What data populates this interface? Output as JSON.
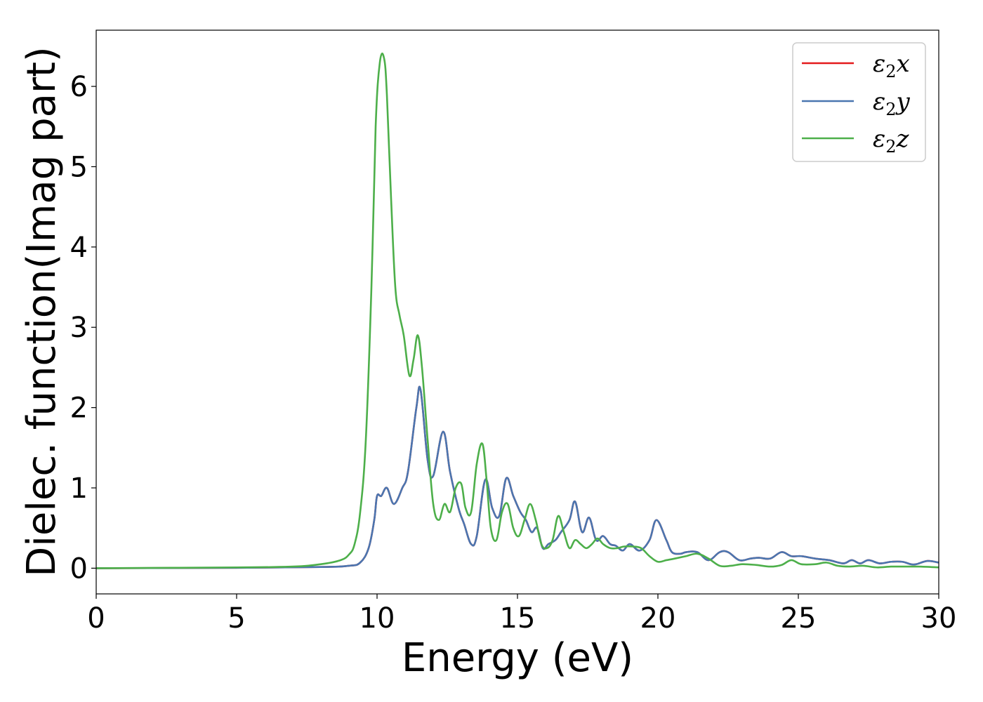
{
  "chart_data": {
    "type": "line",
    "title": "",
    "xlabel": "Energy (eV)",
    "ylabel": "Dielec. function(Imag part)",
    "xlim": [
      0,
      30
    ],
    "ylim": [
      -0.32,
      6.7
    ],
    "xticks": [
      0,
      5,
      10,
      15,
      20,
      25,
      30
    ],
    "yticks": [
      0,
      1,
      2,
      3,
      4,
      5,
      6
    ],
    "xtick_labels": [
      "0",
      "5",
      "10",
      "15",
      "20",
      "25",
      "30"
    ],
    "ytick_labels": [
      "0",
      "1",
      "2",
      "3",
      "4",
      "5",
      "6"
    ],
    "grid": false,
    "legend_position": "top-right",
    "series": [
      {
        "name": "ε2x",
        "name_main": "ε",
        "name_sub": "2",
        "name_var": "x",
        "color": "#e41a1c",
        "x": [
          0,
          5,
          8,
          9,
          9.4,
          9.7,
          9.9,
          10.0,
          10.15,
          10.35,
          10.6,
          10.9,
          11.1,
          11.4,
          11.55,
          11.8,
          12.0,
          12.35,
          12.6,
          12.9,
          13.1,
          13.35,
          13.55,
          13.85,
          14.1,
          14.35,
          14.6,
          14.85,
          15.1,
          15.3,
          15.5,
          15.7,
          15.9,
          16.1,
          16.35,
          16.55,
          16.85,
          17.05,
          17.3,
          17.55,
          17.8,
          18.05,
          18.3,
          18.5,
          18.75,
          19.0,
          19.35,
          19.7,
          19.95,
          20.3,
          20.5,
          20.8,
          21.0,
          21.4,
          21.8,
          22.2,
          22.5,
          22.9,
          23.3,
          23.6,
          24.0,
          24.4,
          24.75,
          25.1,
          25.6,
          26.1,
          26.6,
          26.9,
          27.2,
          27.5,
          27.9,
          28.3,
          28.7,
          29.0,
          29.2,
          29.6,
          30.0
        ],
        "values": [
          0.0,
          0.005,
          0.015,
          0.03,
          0.07,
          0.25,
          0.6,
          0.9,
          0.9,
          1.0,
          0.8,
          1.0,
          1.2,
          2.0,
          2.22,
          1.35,
          1.15,
          1.7,
          1.2,
          0.75,
          0.55,
          0.3,
          0.4,
          1.1,
          0.75,
          0.65,
          1.12,
          0.9,
          0.7,
          0.6,
          0.45,
          0.5,
          0.25,
          0.3,
          0.35,
          0.45,
          0.6,
          0.83,
          0.45,
          0.63,
          0.35,
          0.4,
          0.3,
          0.28,
          0.22,
          0.3,
          0.22,
          0.35,
          0.6,
          0.35,
          0.2,
          0.18,
          0.2,
          0.2,
          0.1,
          0.2,
          0.2,
          0.1,
          0.12,
          0.13,
          0.12,
          0.2,
          0.15,
          0.15,
          0.12,
          0.1,
          0.06,
          0.1,
          0.06,
          0.1,
          0.06,
          0.08,
          0.08,
          0.05,
          0.05,
          0.09,
          0.07
        ]
      },
      {
        "name": "ε2y",
        "name_main": "ε",
        "name_sub": "2",
        "name_var": "y",
        "color": "#4a76b0",
        "x": [
          0,
          5,
          8,
          9,
          9.4,
          9.7,
          9.9,
          10.0,
          10.15,
          10.35,
          10.6,
          10.9,
          11.1,
          11.4,
          11.55,
          11.8,
          12.0,
          12.35,
          12.6,
          12.9,
          13.1,
          13.35,
          13.55,
          13.85,
          14.1,
          14.35,
          14.6,
          14.85,
          15.1,
          15.3,
          15.5,
          15.7,
          15.9,
          16.1,
          16.35,
          16.55,
          16.85,
          17.05,
          17.3,
          17.55,
          17.8,
          18.05,
          18.3,
          18.5,
          18.75,
          19.0,
          19.35,
          19.7,
          19.95,
          20.3,
          20.5,
          20.8,
          21.0,
          21.4,
          21.8,
          22.2,
          22.5,
          22.9,
          23.3,
          23.6,
          24.0,
          24.4,
          24.75,
          25.1,
          25.6,
          26.1,
          26.6,
          26.9,
          27.2,
          27.5,
          27.9,
          28.3,
          28.7,
          29.0,
          29.2,
          29.6,
          30.0
        ],
        "values": [
          0.0,
          0.005,
          0.015,
          0.03,
          0.07,
          0.25,
          0.6,
          0.9,
          0.9,
          1.0,
          0.8,
          1.0,
          1.2,
          2.0,
          2.22,
          1.35,
          1.15,
          1.7,
          1.2,
          0.75,
          0.55,
          0.3,
          0.4,
          1.1,
          0.75,
          0.65,
          1.12,
          0.9,
          0.7,
          0.6,
          0.45,
          0.5,
          0.25,
          0.3,
          0.35,
          0.45,
          0.6,
          0.83,
          0.45,
          0.63,
          0.35,
          0.4,
          0.3,
          0.28,
          0.22,
          0.3,
          0.22,
          0.35,
          0.6,
          0.35,
          0.2,
          0.18,
          0.2,
          0.2,
          0.1,
          0.2,
          0.2,
          0.1,
          0.12,
          0.13,
          0.12,
          0.2,
          0.15,
          0.15,
          0.12,
          0.1,
          0.06,
          0.1,
          0.06,
          0.1,
          0.06,
          0.08,
          0.08,
          0.05,
          0.05,
          0.09,
          0.07
        ]
      },
      {
        "name": "ε2z",
        "name_main": "ε",
        "name_sub": "2",
        "name_var": "z",
        "color": "#4daf4a",
        "x": [
          0,
          5,
          7,
          8,
          8.7,
          9.0,
          9.2,
          9.4,
          9.6,
          9.8,
          9.95,
          10.1,
          10.25,
          10.35,
          10.5,
          10.65,
          10.8,
          10.95,
          11.15,
          11.3,
          11.45,
          11.6,
          11.8,
          12.0,
          12.2,
          12.4,
          12.6,
          12.8,
          13.0,
          13.15,
          13.35,
          13.55,
          13.75,
          13.9,
          14.05,
          14.25,
          14.45,
          14.65,
          14.85,
          15.05,
          15.25,
          15.45,
          15.65,
          15.85,
          16.05,
          16.25,
          16.45,
          16.65,
          16.85,
          17.05,
          17.25,
          17.45,
          17.65,
          17.85,
          18.05,
          18.3,
          18.55,
          18.8,
          19.1,
          19.4,
          19.7,
          20.0,
          20.3,
          20.6,
          21.0,
          21.4,
          21.8,
          22.2,
          22.6,
          23.0,
          23.5,
          24.0,
          24.4,
          24.75,
          25.1,
          25.6,
          26.0,
          26.4,
          26.8,
          27.3,
          27.8,
          28.3,
          28.8,
          29.3,
          30.0
        ],
        "values": [
          0.0,
          0.01,
          0.02,
          0.05,
          0.1,
          0.17,
          0.3,
          0.7,
          1.6,
          3.5,
          5.5,
          6.3,
          6.35,
          5.9,
          4.6,
          3.5,
          3.15,
          2.9,
          2.4,
          2.6,
          2.9,
          2.5,
          1.6,
          0.8,
          0.6,
          0.8,
          0.7,
          1.0,
          1.05,
          0.75,
          0.7,
          1.3,
          1.55,
          1.1,
          0.5,
          0.35,
          0.7,
          0.8,
          0.5,
          0.4,
          0.6,
          0.8,
          0.6,
          0.3,
          0.25,
          0.35,
          0.65,
          0.45,
          0.25,
          0.35,
          0.3,
          0.25,
          0.3,
          0.37,
          0.3,
          0.25,
          0.25,
          0.27,
          0.27,
          0.25,
          0.15,
          0.08,
          0.1,
          0.12,
          0.15,
          0.18,
          0.12,
          0.03,
          0.03,
          0.05,
          0.04,
          0.02,
          0.04,
          0.1,
          0.05,
          0.05,
          0.07,
          0.03,
          0.02,
          0.03,
          0.01,
          0.02,
          0.02,
          0.02,
          0.01
        ]
      }
    ]
  }
}
